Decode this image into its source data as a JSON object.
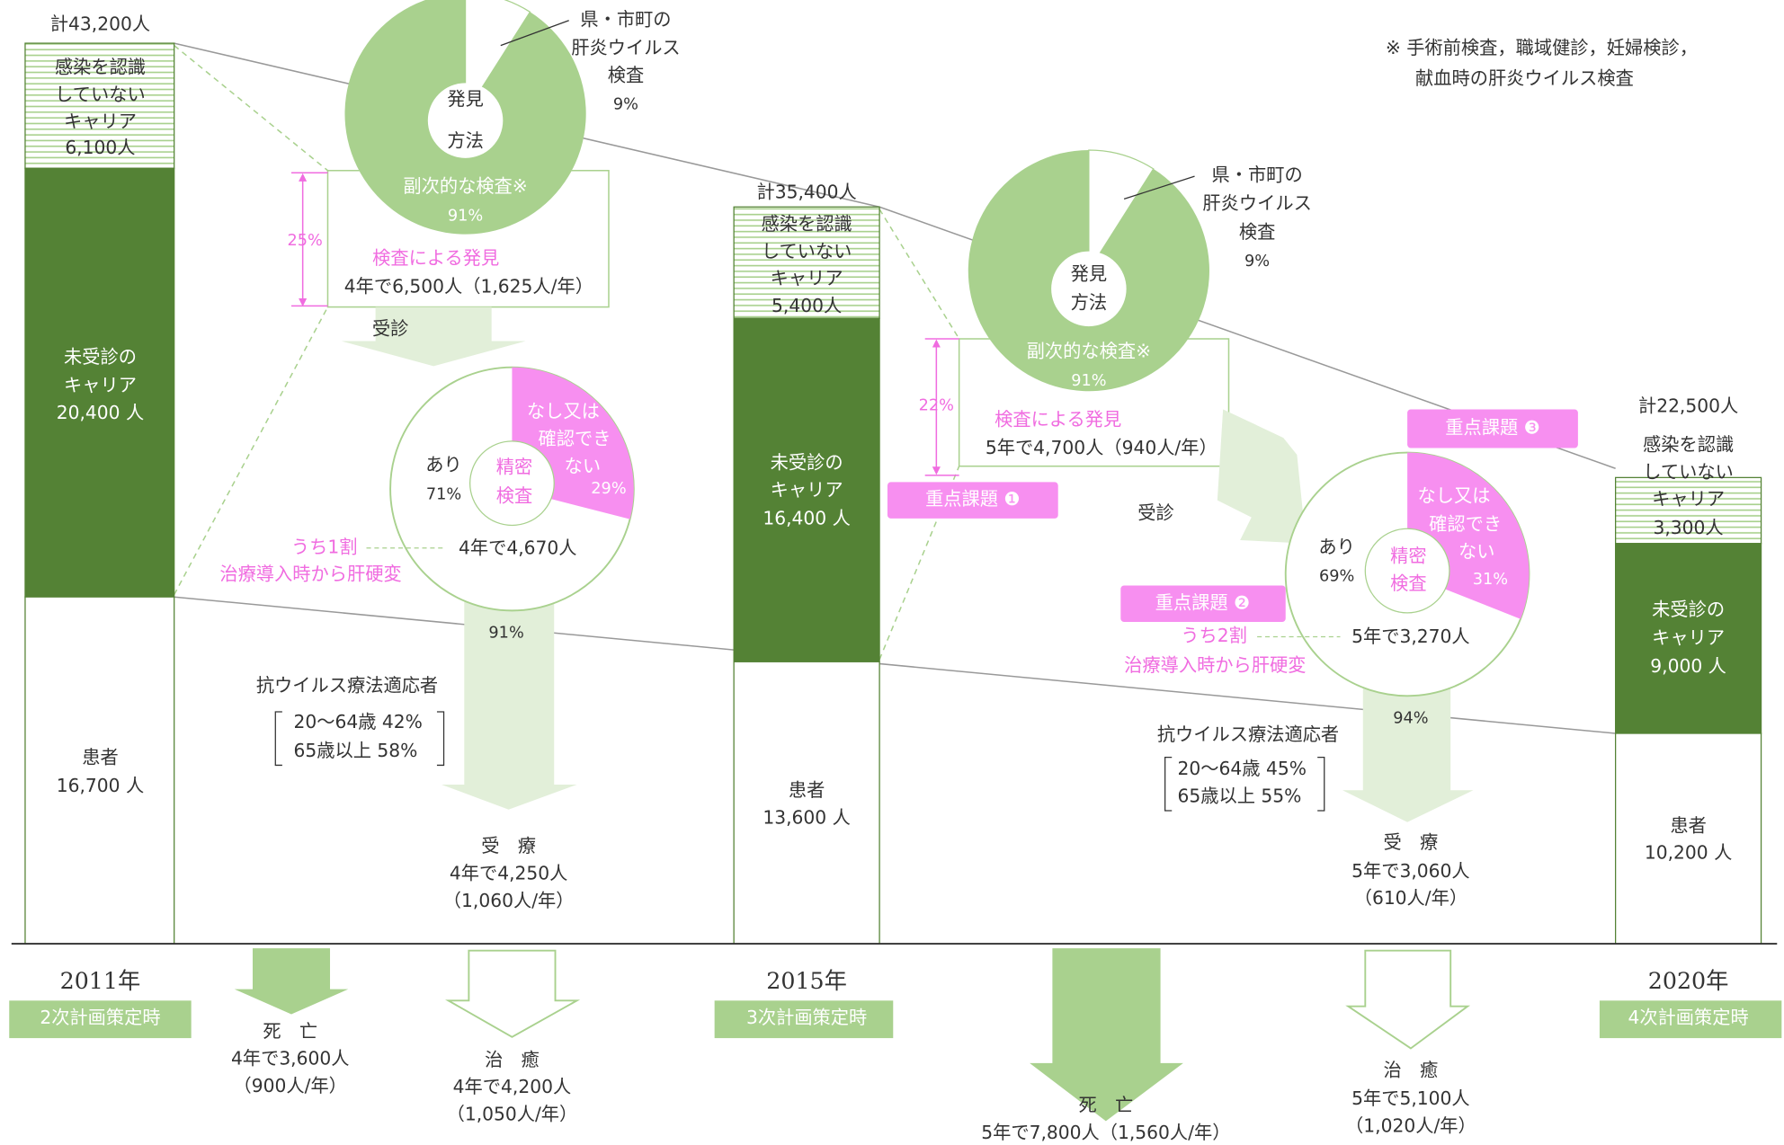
{
  "note": [
    "※ 手術前検査，職域健診，妊婦検診，",
    "献血時の肝炎ウイルス検査"
  ],
  "columns": [
    {
      "total": "計43,200人",
      "unaware": [
        "感染を認識",
        "していない",
        "キャリア",
        "6,100人"
      ],
      "unexamined": [
        "未受診の",
        "キャリア",
        "20,400 人"
      ],
      "patients": [
        "患者",
        "16,700 人"
      ],
      "year": "2011年",
      "plan": "2次計画策定時"
    },
    {
      "total": "計35,400人",
      "unaware": [
        "感染を認識",
        "していない",
        "キャリア",
        "5,400人"
      ],
      "unexamined": [
        "未受診の",
        "キャリア",
        "16,400 人"
      ],
      "patients": [
        "患者",
        "13,600 人"
      ],
      "year": "2015年",
      "plan": "3次計画策定時"
    },
    {
      "total": "計22,500人",
      "unaware": [
        "感染を認識",
        "していない",
        "キャリア",
        "3,300人"
      ],
      "unexamined": [
        "未受診の",
        "キャリア",
        "9,000 人"
      ],
      "patients": [
        "患者",
        "10,200 人"
      ],
      "year": "2020年",
      "plan": "4次計画策定時"
    }
  ],
  "flows": [
    {
      "discovery_pie": {
        "center": [
          "発見",
          "方法"
        ],
        "major": [
          "副次的な検査※",
          "91%"
        ],
        "minor": [
          "県・市町の",
          "肝炎ウイルス",
          "検査",
          "9%"
        ]
      },
      "ratio": "25%",
      "discovery": [
        "検査による発見",
        "4年で6,500人（1,625人/年）"
      ],
      "visit": "受診",
      "exam_pie": {
        "center": [
          "精密",
          "検査"
        ],
        "none": [
          "なし又は",
          "確認でき",
          "ない",
          "29%"
        ],
        "yes": [
          "あり",
          "71%"
        ]
      },
      "cirrhosis": [
        "うち1割",
        "治療導入時から肝硬変"
      ],
      "examined": "4年で4,670人",
      "treat_rate": "91%",
      "eligible": {
        "title": "抗ウイルス療法適応者",
        "rows": [
          "20～64歳  42%",
          "65歳以上  58%"
        ]
      },
      "treated": [
        "受　療",
        "4年で4,250人",
        "（1,060人/年）"
      ],
      "death": [
        "死　亡",
        "4年で3,600人",
        "（900人/年）"
      ],
      "cured": [
        "治　癒",
        "4年で4,200人",
        "（1,050人/年）"
      ]
    },
    {
      "discovery_pie": {
        "center": [
          "発見",
          "方法"
        ],
        "major": [
          "副次的な検査※",
          "91%"
        ],
        "minor": [
          "県・市町の",
          "肝炎ウイルス",
          "検査",
          "9%"
        ]
      },
      "ratio": "22%",
      "discovery": [
        "検査による発見",
        "5年で4,700人（940人/年）"
      ],
      "visit": "受診",
      "exam_pie": {
        "center": [
          "精密",
          "検査"
        ],
        "none": [
          "なし又は",
          "確認でき",
          "ない",
          "31%"
        ],
        "yes": [
          "あり",
          "69%"
        ]
      },
      "cirrhosis": [
        "うち2割",
        "治療導入時から肝硬変"
      ],
      "examined": "5年で3,270人",
      "treat_rate": "94%",
      "eligible": {
        "title": "抗ウイルス療法適応者",
        "rows": [
          "20～64歳  45%",
          "65歳以上  55%"
        ]
      },
      "treated": [
        "受　療",
        "5年で3,060人",
        "（610人/年）"
      ],
      "death": [
        "死　亡",
        "5年で7,800人（1,560人/年）"
      ],
      "cured": [
        "治　癒",
        "5年で5,100人",
        "（1,020人/年）"
      ]
    }
  ],
  "issues": [
    "重点課題 ❶",
    "重点課題 ❷",
    "重点課題 ❸"
  ]
}
